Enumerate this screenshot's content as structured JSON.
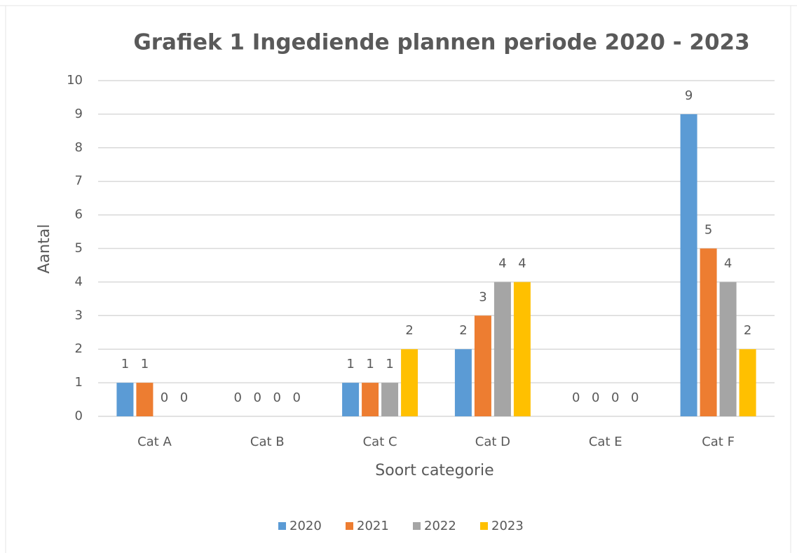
{
  "chart_data": {
    "type": "bar",
    "title": "Grafiek 1 Ingediende plannen periode 2020 - 2023",
    "x_label": "Soort categorie",
    "y_label": "Aantal",
    "categories": [
      "Cat A",
      "Cat B",
      "Cat C",
      "Cat D",
      "Cat E",
      "Cat F"
    ],
    "series": [
      {
        "name": "2020",
        "color": "#5b9bd5",
        "values": [
          1,
          0,
          1,
          2,
          0,
          9
        ]
      },
      {
        "name": "2021",
        "color": "#ed7d31",
        "values": [
          1,
          0,
          1,
          3,
          0,
          5
        ]
      },
      {
        "name": "2022",
        "color": "#a5a5a5",
        "values": [
          0,
          0,
          1,
          4,
          0,
          4
        ]
      },
      {
        "name": "2023",
        "color": "#ffc000",
        "values": [
          0,
          0,
          2,
          4,
          0,
          2
        ]
      }
    ],
    "ylim": [
      0,
      10
    ],
    "yticks": [
      0,
      1,
      2,
      3,
      4,
      5,
      6,
      7,
      8,
      9,
      10
    ],
    "grid": true,
    "legend": "bottom",
    "data_labels": true
  }
}
